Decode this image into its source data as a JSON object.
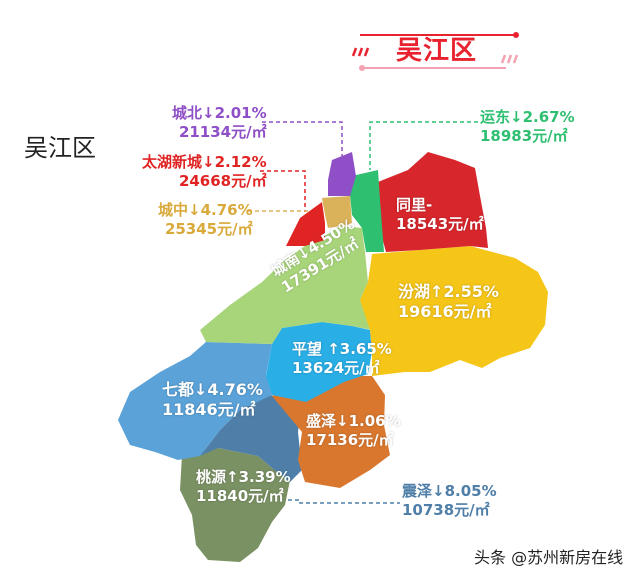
{
  "header": {
    "banner_title": "吴江区",
    "side_title": "吴江区"
  },
  "districts": {
    "chengbei": {
      "line1": "城北↓2.01%",
      "line2": "21134元/㎡",
      "color": "#8f4fc6"
    },
    "taihuxincheng": {
      "line1": "太湖新城↓2.12%",
      "line2": "24668元/㎡",
      "color": "#e02424"
    },
    "chengzhong": {
      "line1": "城中↓4.76%",
      "line2": "25345元/㎡",
      "color": "#d9b25a"
    },
    "yundong": {
      "line1": "运东↓2.67%",
      "line2": "18983元/㎡",
      "color": "#2fbf71"
    },
    "tongli": {
      "line1": "同里-",
      "line2": "18543元/㎡",
      "color": "#d7262c"
    },
    "chengnan": {
      "line1": "城南↓4.50%",
      "line2": "17391元/㎡",
      "color": "#a8d57a"
    },
    "fenhu": {
      "line1": "汾湖↑2.55%",
      "line2": "19616元/㎡",
      "color": "#f5c518"
    },
    "pingwang": {
      "line1": "平望 ↑3.65%",
      "line2": "13624元/㎡",
      "color": "#29aee6"
    },
    "qidu": {
      "line1": "七都↓4.76%",
      "line2": "11846元/㎡",
      "color": "#5aa2d8"
    },
    "shengze": {
      "line1": "盛泽↓1.06%",
      "line2": "17136元/㎡",
      "color": "#d9772e"
    },
    "zhenze": {
      "line1": "震泽↓8.05%",
      "line2": "10738元/㎡",
      "color": "#4f7fa8"
    },
    "taoyuan": {
      "line1": "桃源↑3.39%",
      "line2": "11840元/㎡",
      "color": "#7a9163"
    }
  },
  "footer": {
    "watermark": "头条 @苏州新房在线"
  }
}
